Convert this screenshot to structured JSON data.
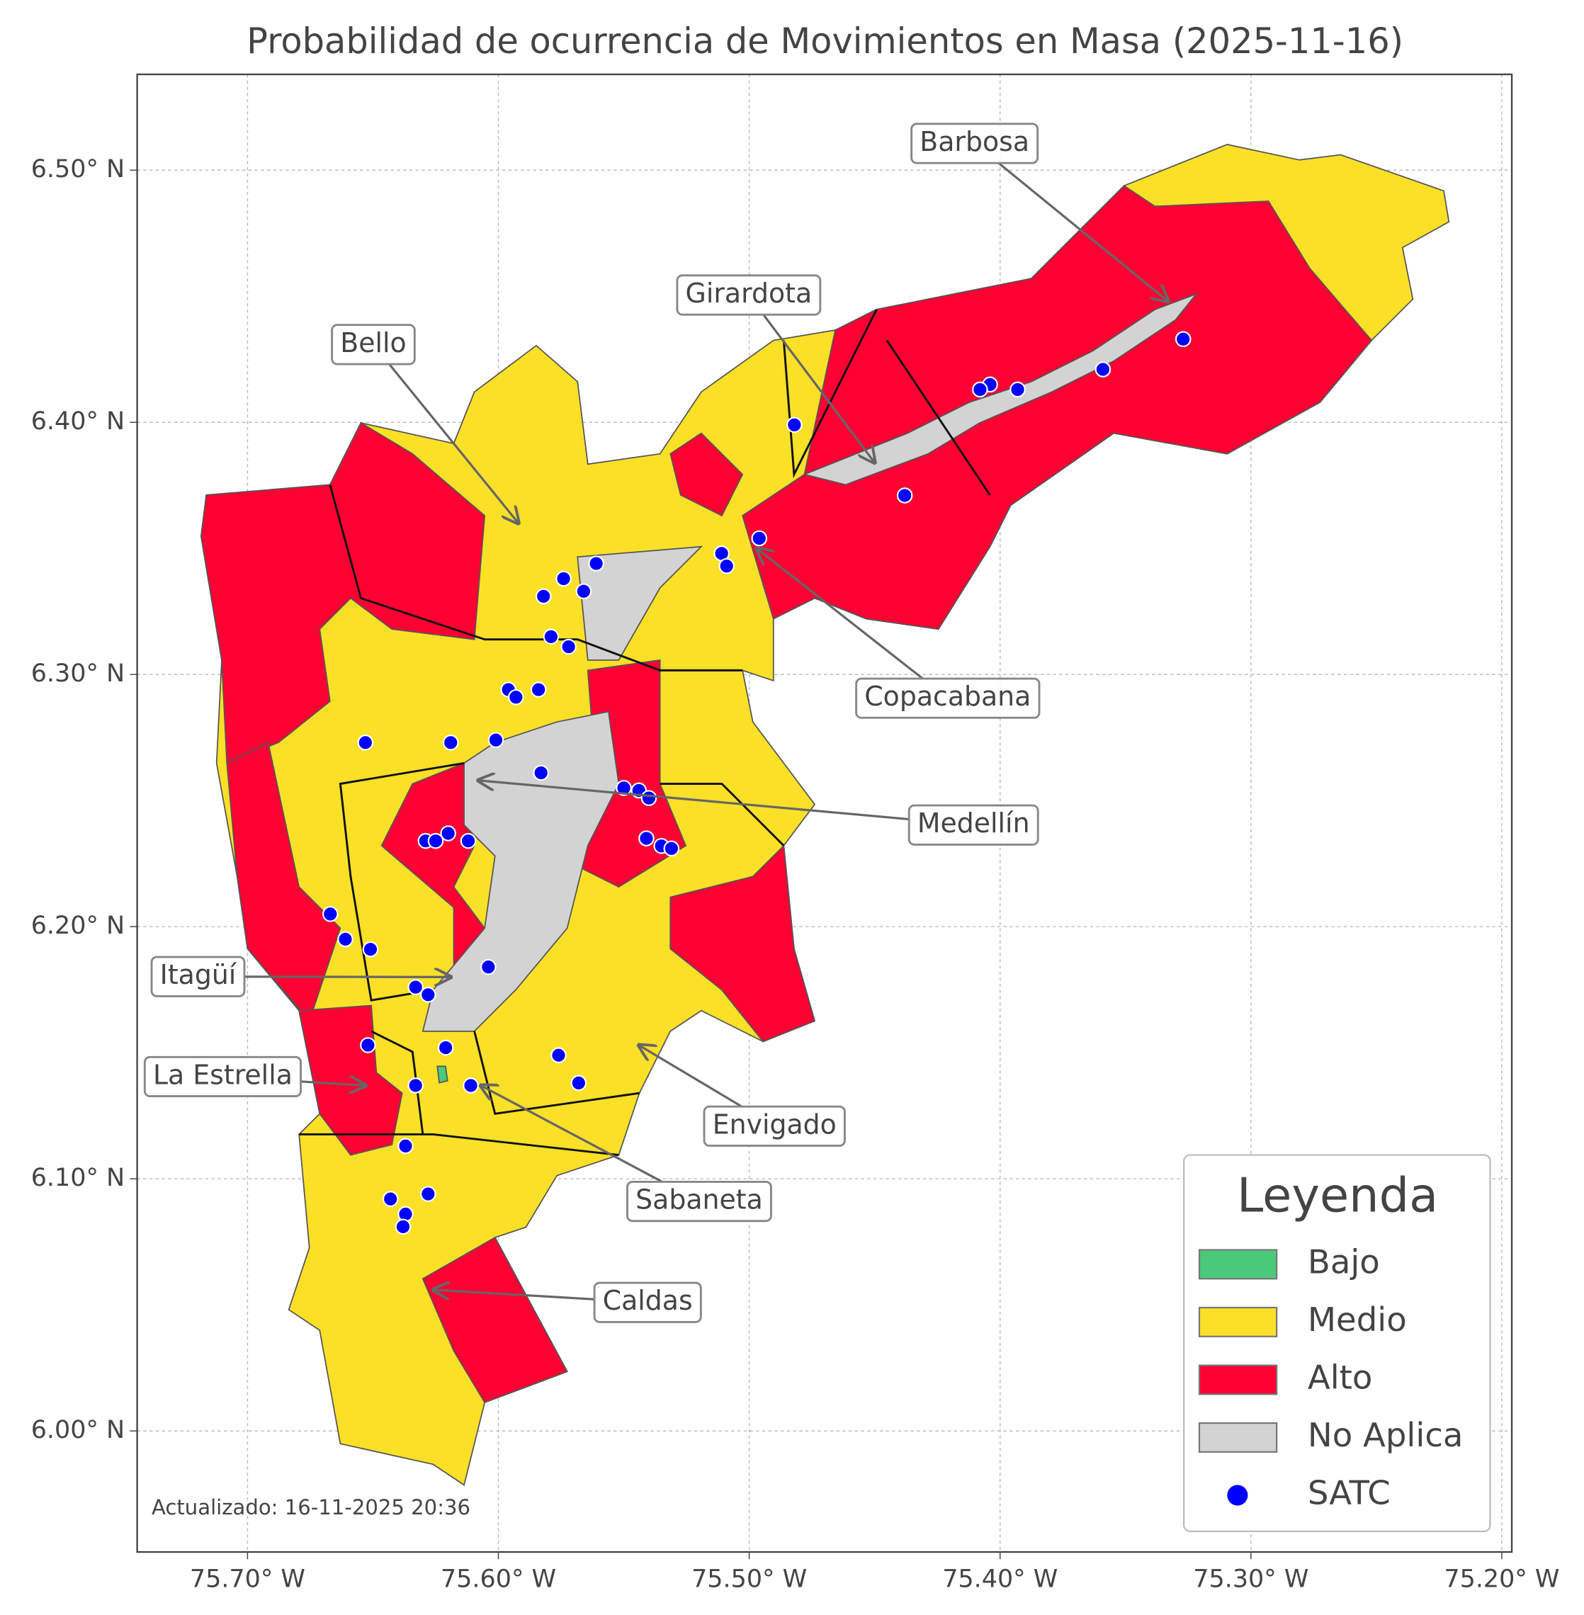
{
  "map": {
    "title": "Probabilidad de ocurrencia de Movimientos en Masa (2025-11-16)",
    "xlim": [
      -75.744,
      -75.196
    ],
    "ylim": [
      5.952,
      6.538
    ],
    "xticks": [
      {
        "value": -75.7,
        "label": "75.70° W"
      },
      {
        "value": -75.6,
        "label": "75.60° W"
      },
      {
        "value": -75.5,
        "label": "75.50° W"
      },
      {
        "value": -75.4,
        "label": "75.40° W"
      },
      {
        "value": -75.3,
        "label": "75.30° W"
      },
      {
        "value": -75.2,
        "label": "75.20° W"
      }
    ],
    "yticks": [
      {
        "value": 6.0,
        "label": "6.00° N"
      },
      {
        "value": 6.1,
        "label": "6.10° N"
      },
      {
        "value": 6.2,
        "label": "6.20° N"
      },
      {
        "value": 6.3,
        "label": "6.30° N"
      },
      {
        "value": 6.4,
        "label": "6.40° N"
      },
      {
        "value": 6.5,
        "label": "6.50° N"
      }
    ],
    "grid": true,
    "annotations": [
      {
        "label": "Barbosa",
        "xy": [
          -75.333,
          6.448
        ]
      },
      {
        "label": "Girardota",
        "xy": [
          -75.45,
          6.384
        ]
      },
      {
        "label": "Bello",
        "xy": [
          -75.592,
          6.36
        ]
      },
      {
        "label": "Copacabana",
        "xy": [
          -75.497,
          6.35
        ]
      },
      {
        "label": "Medellín",
        "xy": [
          -75.608,
          6.258
        ]
      },
      {
        "label": "Itagüí",
        "xy": [
          -75.619,
          6.18
        ]
      },
      {
        "label": "La Estrella",
        "xy": [
          -75.653,
          6.137
        ]
      },
      {
        "label": "Envigado",
        "xy": [
          -75.544,
          6.153
        ]
      },
      {
        "label": "Sabaneta",
        "xy": [
          -75.607,
          6.137
        ]
      },
      {
        "label": "Caldas",
        "xy": [
          -75.626,
          6.056
        ]
      }
    ],
    "stations": {
      "name": "SATC",
      "color": "#0000ff",
      "lon": [
        -75.327,
        -75.359,
        -75.393,
        -75.404,
        -75.408,
        -75.482,
        -75.438,
        -75.496,
        -75.511,
        -75.509,
        -75.561,
        -75.574,
        -75.566,
        -75.582,
        -75.579,
        -75.572,
        -75.596,
        -75.584,
        -75.593,
        -75.653,
        -75.619,
        -75.601,
        -75.583,
        -75.55,
        -75.544,
        -75.54,
        -75.541,
        -75.535,
        -75.531,
        -75.62,
        -75.612,
        -75.629,
        -75.625,
        -75.667,
        -75.661,
        -75.651,
        -75.604,
        -75.633,
        -75.628,
        -75.652,
        -75.621,
        -75.576,
        -75.568,
        -75.633,
        -75.611,
        -75.637,
        -75.643,
        -75.628,
        -75.637,
        -75.638
      ],
      "lat": [
        6.433,
        6.421,
        6.413,
        6.415,
        6.413,
        6.399,
        6.371,
        6.354,
        6.348,
        6.343,
        6.344,
        6.338,
        6.333,
        6.331,
        6.315,
        6.311,
        6.294,
        6.294,
        6.291,
        6.273,
        6.273,
        6.274,
        6.261,
        6.255,
        6.254,
        6.251,
        6.235,
        6.232,
        6.231,
        6.237,
        6.234,
        6.234,
        6.234,
        6.205,
        6.195,
        6.191,
        6.184,
        6.176,
        6.173,
        6.153,
        6.152,
        6.149,
        6.138,
        6.137,
        6.137,
        6.113,
        6.092,
        6.094,
        6.086,
        6.081
      ]
    },
    "legend": {
      "title": "Leyenda",
      "items": [
        {
          "name": "Bajo",
          "color": "#4ac97a"
        },
        {
          "name": "Medio",
          "color": "#fbe028"
        },
        {
          "name": "Alto",
          "color": "#ff0033"
        },
        {
          "name": "No Aplica",
          "color": "#d3d3d3"
        }
      ]
    },
    "footnote": "Actualizado: 16-11-2025 20:36"
  }
}
